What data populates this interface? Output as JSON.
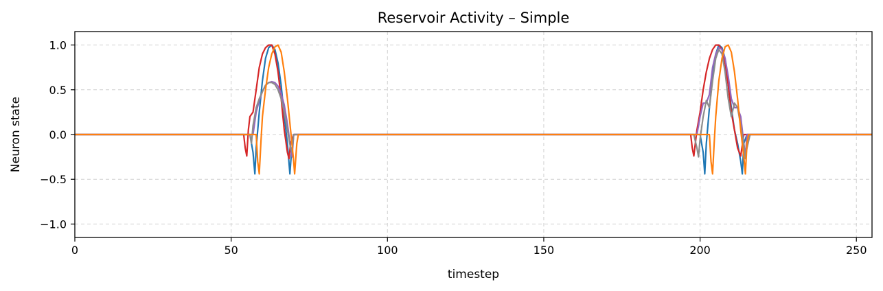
{
  "chart_data": {
    "type": "line",
    "title": "Reservoir Activity – Simple",
    "xlabel": "timestep",
    "ylabel": "Neuron state",
    "xlim": [
      0,
      255
    ],
    "ylim": [
      -1.15,
      1.15
    ],
    "grid": true,
    "x_ticks": [
      0,
      50,
      100,
      150,
      200,
      250
    ],
    "x_tick_labels": [
      "0",
      "50",
      "100",
      "150",
      "200",
      "250"
    ],
    "y_ticks": [
      1.0,
      0.5,
      0.0,
      -0.5,
      -1.0
    ],
    "y_tick_labels": [
      "1.0",
      "0.5",
      "0.0",
      "−0.5",
      "−1.0"
    ],
    "series": [
      {
        "color": "#1f77b4",
        "points": [
          [
            0,
            0
          ],
          [
            56,
            0
          ],
          [
            57,
            -0.2
          ],
          [
            57.6,
            -0.44
          ],
          [
            58,
            -0.15
          ],
          [
            59,
            0.25
          ],
          [
            60,
            0.6
          ],
          [
            61,
            0.85
          ],
          [
            62,
            0.97
          ],
          [
            63,
            1.0
          ],
          [
            64,
            0.95
          ],
          [
            65,
            0.8
          ],
          [
            66,
            0.55
          ],
          [
            67,
            0.2
          ],
          [
            68,
            -0.1
          ],
          [
            68.8,
            -0.44
          ],
          [
            69.3,
            -0.2
          ],
          [
            70,
            0
          ],
          [
            200,
            0
          ],
          [
            201,
            -0.2
          ],
          [
            201.5,
            -0.44
          ],
          [
            202,
            -0.1
          ],
          [
            203,
            0.3
          ],
          [
            204,
            0.65
          ],
          [
            205,
            0.9
          ],
          [
            206,
            1.0
          ],
          [
            207,
            0.97
          ],
          [
            208,
            0.85
          ],
          [
            209,
            0.6
          ],
          [
            210,
            0.3
          ],
          [
            211,
            0.05
          ],
          [
            212,
            -0.1
          ],
          [
            213,
            -0.3
          ],
          [
            213.5,
            -0.44
          ],
          [
            214,
            -0.1
          ],
          [
            215,
            0
          ],
          [
            255,
            0
          ]
        ]
      },
      {
        "color": "#d62728",
        "points": [
          [
            0,
            0
          ],
          [
            54,
            0
          ],
          [
            54.5,
            -0.15
          ],
          [
            55,
            -0.24
          ],
          [
            55.5,
            0.05
          ],
          [
            56,
            0.2
          ],
          [
            57,
            0.25
          ],
          [
            58,
            0.5
          ],
          [
            59,
            0.75
          ],
          [
            60,
            0.9
          ],
          [
            61,
            0.97
          ],
          [
            62,
            1.0
          ],
          [
            63,
            1.0
          ],
          [
            64,
            0.9
          ],
          [
            65,
            0.7
          ],
          [
            66,
            0.4
          ],
          [
            67,
            0.05
          ],
          [
            68,
            -0.2
          ],
          [
            68.5,
            -0.27
          ],
          [
            69,
            -0.1
          ],
          [
            70,
            0
          ],
          [
            197,
            0
          ],
          [
            197.5,
            -0.15
          ],
          [
            198,
            -0.24
          ],
          [
            199,
            0.05
          ],
          [
            200,
            0.25
          ],
          [
            201,
            0.5
          ],
          [
            202,
            0.7
          ],
          [
            203,
            0.85
          ],
          [
            204,
            0.95
          ],
          [
            205,
            1.0
          ],
          [
            206,
            1.0
          ],
          [
            207,
            0.95
          ],
          [
            208,
            0.8
          ],
          [
            209,
            0.55
          ],
          [
            210,
            0.25
          ],
          [
            211,
            0.05
          ],
          [
            212,
            -0.15
          ],
          [
            213,
            -0.24
          ],
          [
            214,
            0
          ],
          [
            255,
            0
          ]
        ]
      },
      {
        "color": "#9467bd",
        "points": [
          [
            0,
            0
          ],
          [
            57,
            0
          ],
          [
            58,
            0.25
          ],
          [
            59,
            0.38
          ],
          [
            60,
            0.48
          ],
          [
            61,
            0.55
          ],
          [
            62,
            0.58
          ],
          [
            63,
            0.59
          ],
          [
            64,
            0.58
          ],
          [
            65,
            0.54
          ],
          [
            66,
            0.46
          ],
          [
            67,
            0.33
          ],
          [
            68,
            0.12
          ],
          [
            69,
            -0.15
          ],
          [
            69.5,
            -0.25
          ],
          [
            70,
            0
          ],
          [
            199,
            0
          ],
          [
            200,
            0.2
          ],
          [
            201,
            0.35
          ],
          [
            202,
            0.35
          ],
          [
            203,
            0.45
          ],
          [
            204,
            0.75
          ],
          [
            205,
            0.9
          ],
          [
            206,
            0.97
          ],
          [
            207,
            0.95
          ],
          [
            208,
            0.85
          ],
          [
            209,
            0.65
          ],
          [
            210,
            0.4
          ],
          [
            211,
            0.3
          ],
          [
            212,
            0.3
          ],
          [
            213,
            0.2
          ],
          [
            214,
            -0.1
          ],
          [
            214.5,
            -0.25
          ],
          [
            215,
            0
          ],
          [
            255,
            0
          ]
        ]
      },
      {
        "color": "#8c8c8c",
        "points": [
          [
            0,
            0
          ],
          [
            56,
            0
          ],
          [
            56.5,
            -0.1
          ],
          [
            57,
            0.1
          ],
          [
            58,
            0.3
          ],
          [
            59,
            0.4
          ],
          [
            60,
            0.48
          ],
          [
            61,
            0.55
          ],
          [
            62,
            0.58
          ],
          [
            63,
            0.58
          ],
          [
            64,
            0.56
          ],
          [
            65,
            0.5
          ],
          [
            66,
            0.4
          ],
          [
            67,
            0.25
          ],
          [
            68,
            0.05
          ],
          [
            69,
            -0.15
          ],
          [
            69.5,
            -0.2
          ],
          [
            70,
            0
          ],
          [
            198,
            0
          ],
          [
            199,
            -0.15
          ],
          [
            199.5,
            -0.25
          ],
          [
            200,
            -0.05
          ],
          [
            201,
            0.2
          ],
          [
            202,
            0.38
          ],
          [
            203,
            0.3
          ],
          [
            204,
            0.6
          ],
          [
            205,
            0.85
          ],
          [
            206,
            0.95
          ],
          [
            207,
            0.9
          ],
          [
            208,
            0.7
          ],
          [
            209,
            0.4
          ],
          [
            210,
            0.2
          ],
          [
            211,
            0.35
          ],
          [
            212,
            0.3
          ],
          [
            213,
            0.1
          ],
          [
            214,
            -0.1
          ],
          [
            214.5,
            -0.27
          ],
          [
            215,
            -0.15
          ],
          [
            216,
            0
          ],
          [
            255,
            0
          ]
        ]
      },
      {
        "color": "#ff7f0e",
        "points": [
          [
            0,
            0
          ],
          [
            58,
            0
          ],
          [
            58.5,
            -0.3
          ],
          [
            59,
            -0.44
          ],
          [
            59.5,
            -0.1
          ],
          [
            60,
            0.2
          ],
          [
            61,
            0.5
          ],
          [
            62,
            0.75
          ],
          [
            63,
            0.9
          ],
          [
            64,
            0.98
          ],
          [
            65,
            1.0
          ],
          [
            66,
            0.92
          ],
          [
            67,
            0.7
          ],
          [
            68,
            0.4
          ],
          [
            69,
            0.05
          ],
          [
            70,
            -0.3
          ],
          [
            70.3,
            -0.44
          ],
          [
            71,
            -0.1
          ],
          [
            71.5,
            0
          ],
          [
            203,
            0
          ],
          [
            203.5,
            -0.3
          ],
          [
            204,
            -0.44
          ],
          [
            204.5,
            -0.1
          ],
          [
            205,
            0.2
          ],
          [
            206,
            0.6
          ],
          [
            207,
            0.85
          ],
          [
            208,
            0.98
          ],
          [
            209,
            1.0
          ],
          [
            210,
            0.92
          ],
          [
            211,
            0.7
          ],
          [
            212,
            0.4
          ],
          [
            213,
            0.05
          ],
          [
            214,
            -0.25
          ],
          [
            214.5,
            -0.44
          ],
          [
            215,
            -0.1
          ],
          [
            215.5,
            0
          ],
          [
            255,
            0
          ]
        ]
      }
    ]
  }
}
